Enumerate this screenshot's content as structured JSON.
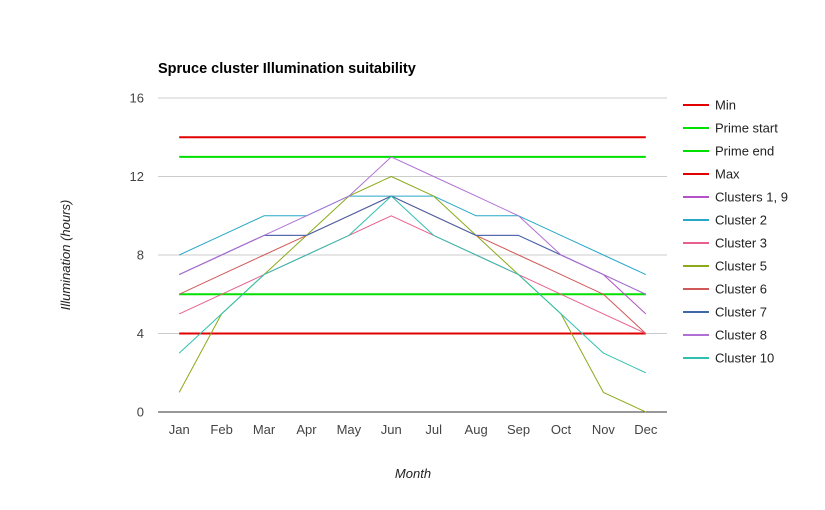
{
  "chart_data": {
    "type": "line",
    "title": "Spruce cluster Illumination suitability",
    "xlabel": "Month",
    "ylabel": "Illumination (hours)",
    "ylim": [
      0,
      16
    ],
    "yticks": [
      0,
      4,
      8,
      12,
      16
    ],
    "grid": true,
    "legend_position": "right",
    "categories": [
      "Jan",
      "Feb",
      "Mar",
      "Apr",
      "May",
      "Jun",
      "Jul",
      "Aug",
      "Sep",
      "Oct",
      "Nov",
      "Dec"
    ],
    "series": [
      {
        "name": "Min",
        "color": "#e00000",
        "width": 2,
        "values": [
          4,
          4,
          4,
          4,
          4,
          4,
          4,
          4,
          4,
          4,
          4,
          4
        ]
      },
      {
        "name": "Prime start",
        "color": "#00e000",
        "width": 2,
        "values": [
          6,
          6,
          6,
          6,
          6,
          6,
          6,
          6,
          6,
          6,
          6,
          6
        ]
      },
      {
        "name": "Prime end",
        "color": "#00e000",
        "width": 2,
        "values": [
          13,
          13,
          13,
          13,
          13,
          13,
          13,
          13,
          13,
          13,
          13,
          13
        ]
      },
      {
        "name": "Max",
        "color": "#e00000",
        "width": 2,
        "values": [
          14,
          14,
          14,
          14,
          14,
          14,
          14,
          14,
          14,
          14,
          14,
          14
        ]
      },
      {
        "name": "Clusters 1, 9",
        "color": "#b450c8",
        "width": 1,
        "values": [
          7,
          8,
          9,
          9,
          10,
          11,
          10,
          9,
          9,
          8,
          7,
          5
        ]
      },
      {
        "name": "Cluster 2",
        "color": "#26a8c8",
        "width": 1,
        "values": [
          8,
          9,
          10,
          10,
          11,
          11,
          11,
          10,
          10,
          9,
          8,
          7
        ]
      },
      {
        "name": "Cluster 3",
        "color": "#e8608c",
        "width": 1,
        "values": [
          5,
          6,
          7,
          8,
          9,
          10,
          9,
          8,
          7,
          6,
          5,
          4
        ]
      },
      {
        "name": "Cluster 5",
        "color": "#8aaa1a",
        "width": 1,
        "values": [
          1,
          5,
          7,
          9,
          11,
          12,
          11,
          9,
          7,
          5,
          1,
          0
        ]
      },
      {
        "name": "Cluster 6",
        "color": "#d05858",
        "width": 1,
        "values": [
          6,
          7,
          8,
          9,
          10,
          11,
          10,
          9,
          8,
          7,
          6,
          4
        ]
      },
      {
        "name": "Cluster 7",
        "color": "#3e6aa8",
        "width": 1,
        "values": [
          7,
          8,
          9,
          9,
          10,
          11,
          10,
          9,
          9,
          8,
          7,
          6
        ]
      },
      {
        "name": "Cluster 8",
        "color": "#b070d4",
        "width": 1,
        "values": [
          7,
          8,
          9,
          10,
          11,
          13,
          12,
          11,
          10,
          8,
          7,
          6
        ]
      },
      {
        "name": "Cluster 10",
        "color": "#30c0b0",
        "width": 1,
        "values": [
          3,
          5,
          7,
          8,
          9,
          11,
          9,
          8,
          7,
          5,
          3,
          2
        ]
      }
    ]
  }
}
